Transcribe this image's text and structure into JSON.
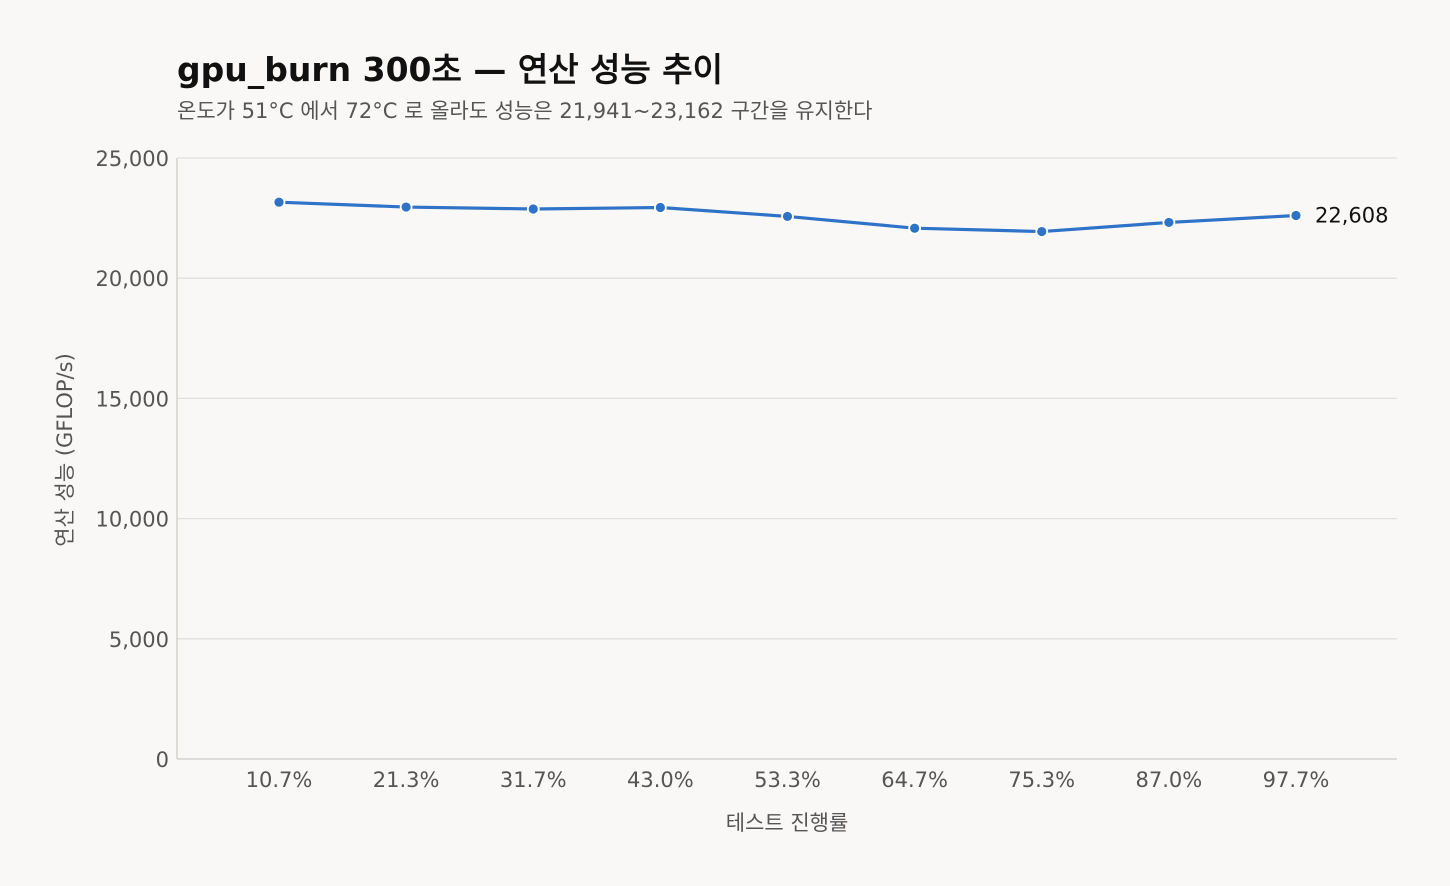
{
  "chart_data": {
    "type": "line",
    "title": "gpu_burn 300초 — 연산 성능 추이",
    "subtitle": "온도가 51°C 에서 72°C 로 올라도 성능은 21,941~23,162 구간을 유지한다",
    "xlabel": "테스트 진행률",
    "ylabel": "연산 성능 (GFLOP/s)",
    "categories": [
      "10.7%",
      "21.3%",
      "31.7%",
      "43.0%",
      "53.3%",
      "64.7%",
      "75.3%",
      "87.0%",
      "97.7%"
    ],
    "series": [
      {
        "values": [
          23162,
          22960,
          22880,
          22940,
          22570,
          22080,
          21941,
          22320,
          22608
        ],
        "color": "#2e73c8"
      }
    ],
    "ylim": [
      0,
      25000
    ],
    "yticks": [
      0,
      5000,
      10000,
      15000,
      20000,
      25000
    ],
    "ytick_labels": [
      "0",
      "5,000",
      "10,000",
      "15,000",
      "20,000",
      "25,000"
    ],
    "end_label": "22,608",
    "grid": true,
    "legend": "none"
  }
}
